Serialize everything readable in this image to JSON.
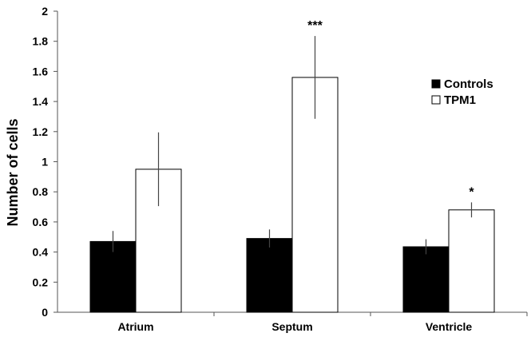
{
  "chart_data": {
    "type": "bar",
    "title": "",
    "xlabel": "",
    "ylabel": "Number of cells",
    "ylim": [
      0,
      2
    ],
    "yticks": [
      0,
      0.2,
      0.4,
      0.6,
      0.8,
      1,
      1.2,
      1.4,
      1.6,
      1.8,
      2
    ],
    "ytick_labels": [
      "0",
      "0.2",
      "0.4",
      "0.6",
      "0.8",
      "1",
      "1.2",
      "1.4",
      "1.6",
      "1.8",
      "2"
    ],
    "categories": [
      "Atrium",
      "Septum",
      "Ventricle"
    ],
    "series": [
      {
        "name": "Controls",
        "color": "#000000",
        "values": [
          0.47,
          0.49,
          0.435
        ],
        "errors": [
          0.07,
          0.06,
          0.05
        ]
      },
      {
        "name": "TPM1",
        "color": "#ffffff",
        "values": [
          0.95,
          1.56,
          0.68
        ],
        "errors": [
          0.245,
          0.275,
          0.05
        ]
      }
    ],
    "annotations": [
      {
        "category_index": 1,
        "series_index": 1,
        "text": "***"
      },
      {
        "category_index": 2,
        "series_index": 1,
        "text": "*"
      }
    ],
    "legend": {
      "position": "right",
      "entries": [
        "Controls",
        "TPM1"
      ]
    },
    "grid": false
  }
}
